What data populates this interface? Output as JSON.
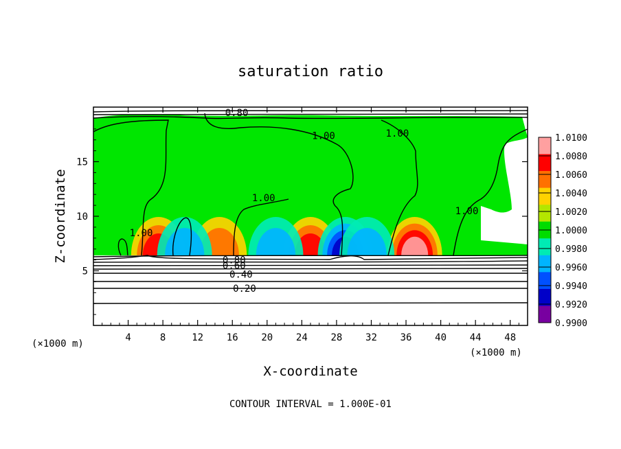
{
  "chart_data": {
    "type": "heatmap",
    "title": "saturation ratio",
    "xlabel": "X-coordinate",
    "ylabel": "Z-coordinate",
    "x_units": "(×1000 m)",
    "y_units": "(×1000 m)",
    "xlim": [
      0,
      50
    ],
    "ylim": [
      0,
      20
    ],
    "x_ticks": [
      4,
      8,
      12,
      16,
      20,
      24,
      28,
      32,
      36,
      40,
      44,
      48
    ],
    "y_ticks": [
      5,
      10,
      15
    ],
    "footer": "CONTOUR INTERVAL = 1.000E-01",
    "colorbar": {
      "ticks": [
        "1.0100",
        "1.0080",
        "1.0060",
        "1.0040",
        "1.0020",
        "1.0000",
        "0.9980",
        "0.9960",
        "0.9940",
        "0.9920",
        "0.9900"
      ],
      "colors": [
        "#ffa0a0",
        "#ff0000",
        "#ff7000",
        "#ffd200",
        "#b4e600",
        "#00dc00",
        "#00ebb4",
        "#00b4ff",
        "#0050ff",
        "#0000c8",
        "#7800a0"
      ]
    },
    "background_color": "#00e600",
    "contour_labels": [
      {
        "text": "0.80",
        "x": 16.5,
        "z": 19.5
      },
      {
        "text": "1.00",
        "x": 26.5,
        "z": 17.4
      },
      {
        "text": "1.00",
        "x": 35.0,
        "z": 17.6
      },
      {
        "text": "1.00",
        "x": 19.6,
        "z": 11.7
      },
      {
        "text": "1.00",
        "x": 43.0,
        "z": 10.5
      },
      {
        "text": "1.00",
        "x": 5.5,
        "z": 8.5
      },
      {
        "text": "0.80",
        "x": 16.2,
        "z": 6.0
      },
      {
        "text": "0.60",
        "x": 16.2,
        "z": 5.5
      },
      {
        "text": "0.40",
        "x": 17.0,
        "z": 4.7
      },
      {
        "text": "0.20",
        "x": 17.4,
        "z": 3.4
      }
    ],
    "warm_anomalies": [
      {
        "x": 7.5,
        "z": 6.8,
        "value": 1.007
      },
      {
        "x": 14.5,
        "z": 6.5,
        "value": 1.006
      },
      {
        "x": 25.0,
        "z": 6.6,
        "value": 1.008
      },
      {
        "x": 37.0,
        "z": 6.8,
        "value": 1.009
      }
    ],
    "cool_anomalies": [
      {
        "x": 10.5,
        "z": 6.6,
        "value": 0.994
      },
      {
        "x": 21.0,
        "z": 6.6,
        "value": 0.995
      },
      {
        "x": 29.0,
        "z": 6.7,
        "value": 0.991
      },
      {
        "x": 31.5,
        "z": 6.5,
        "value": 0.995
      }
    ]
  }
}
